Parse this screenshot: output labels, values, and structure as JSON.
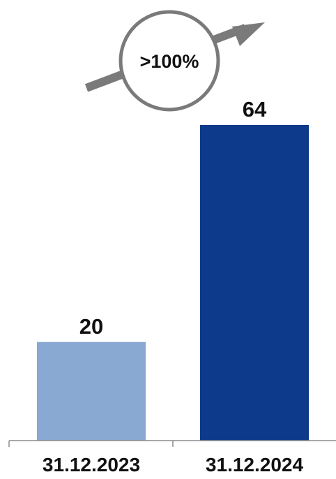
{
  "chart_data": {
    "type": "bar",
    "categories": [
      "31.12.2023",
      "31.12.2024"
    ],
    "values": [
      20,
      64
    ],
    "value_labels": [
      "20",
      "64"
    ],
    "bar_colors": [
      "#8aa9d2",
      "#0d3a8a"
    ],
    "ylim": [
      0,
      64
    ],
    "grid": false,
    "legend": "none",
    "annotation": {
      "text": ">100%",
      "arrow_color": "#7a7a7a",
      "circle_color": "#7a7a7a"
    }
  }
}
